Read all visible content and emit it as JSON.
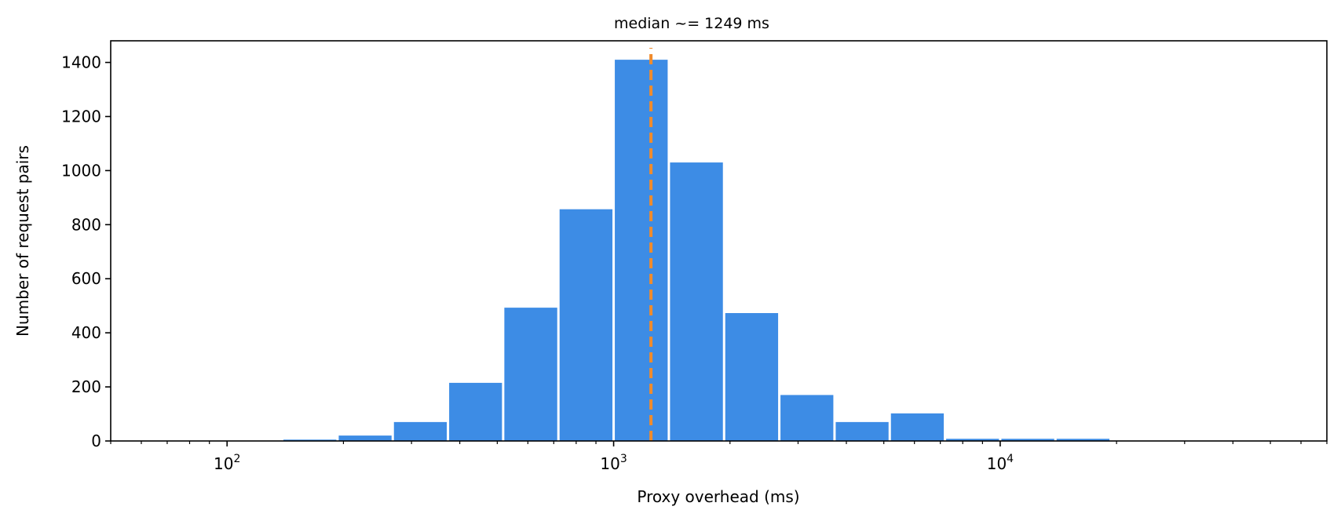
{
  "chart_data": {
    "type": "bar",
    "title": "median ~= 1249 ms",
    "xlabel": "Proxy overhead (ms)",
    "ylabel": "Number of request pairs",
    "x_scale": "log",
    "xlim": [
      50,
      70000
    ],
    "ylim": [
      0,
      1480
    ],
    "x_ticks": [
      {
        "value": 100,
        "base": "10",
        "exp": "2"
      },
      {
        "value": 1000,
        "base": "10",
        "exp": "3"
      },
      {
        "value": 10000,
        "base": "10",
        "exp": "4"
      }
    ],
    "y_ticks": [
      0,
      200,
      400,
      600,
      800,
      1000,
      1200,
      1400
    ],
    "bins": [
      {
        "x0": 100,
        "x1": 138.9,
        "count": 0
      },
      {
        "x0": 138.9,
        "x1": 193.1,
        "count": 5
      },
      {
        "x0": 193.1,
        "x1": 268.3,
        "count": 20
      },
      {
        "x0": 268.3,
        "x1": 372.8,
        "count": 70
      },
      {
        "x0": 372.8,
        "x1": 517.9,
        "count": 215
      },
      {
        "x0": 517.9,
        "x1": 719.7,
        "count": 493
      },
      {
        "x0": 719.7,
        "x1": 1000,
        "count": 857
      },
      {
        "x0": 1000,
        "x1": 1389.5,
        "count": 1410
      },
      {
        "x0": 1389.5,
        "x1": 1930.7,
        "count": 1030
      },
      {
        "x0": 1930.7,
        "x1": 2682.7,
        "count": 473
      },
      {
        "x0": 2682.7,
        "x1": 3727.6,
        "count": 170
      },
      {
        "x0": 3727.6,
        "x1": 5179.5,
        "count": 70
      },
      {
        "x0": 5179.5,
        "x1": 7196.9,
        "count": 102
      },
      {
        "x0": 7196.9,
        "x1": 10000,
        "count": 8
      },
      {
        "x0": 10000,
        "x1": 13895,
        "count": 8
      },
      {
        "x0": 13895,
        "x1": 19307,
        "count": 8
      }
    ],
    "median": 1249,
    "colors": {
      "bar": "#3d8ce5",
      "median_line": "#f08b2c",
      "axis": "#000000"
    }
  }
}
